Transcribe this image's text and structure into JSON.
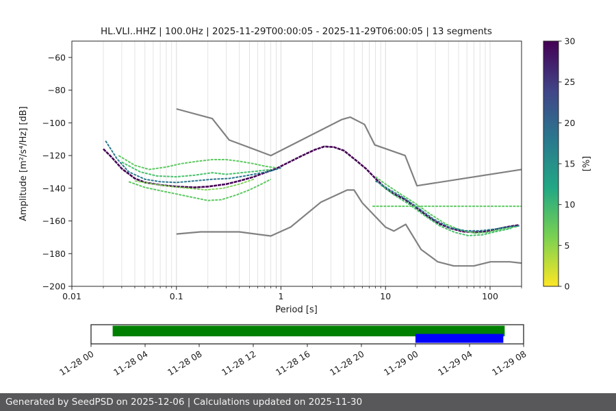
{
  "footer": {
    "text": "Generated by SeedPSD on 2025-12-06 | Calculations updated on 2025-11-30"
  },
  "chart_data": {
    "type": "line",
    "title": "HL.VLI..HHZ | 100.0Hz | 2025-11-29T00:00:05 - 2025-11-29T06:00:05 | 13 segments",
    "xlabel": "Period [s]",
    "ylabel": "Amplitude [m²/s⁴/Hz] [dB]",
    "xscale": "log",
    "xlim": [
      0.01,
      200
    ],
    "ylim": [
      -200,
      -50
    ],
    "grid": "vertical-log",
    "xticks": [
      0.01,
      0.1,
      1,
      10,
      100
    ],
    "xtick_labels": [
      "0.01",
      "0.1",
      "1",
      "10",
      "100"
    ],
    "yticks": [
      -60,
      -80,
      -100,
      -120,
      -140,
      -160,
      -180,
      -200
    ],
    "ytick_labels": [
      "−60",
      "−80",
      "−100",
      "−120",
      "−140",
      "−160",
      "−180",
      "−200"
    ],
    "colorbar": {
      "label": "[%]",
      "min": 0,
      "max": 30,
      "ticks": [
        0,
        5,
        10,
        15,
        20,
        25,
        30
      ],
      "tick_labels": [
        "0",
        "5",
        "10",
        "15",
        "20",
        "25",
        "30"
      ],
      "colors_bottom_to_top": [
        "#fde725",
        "#7ad151",
        "#22a884",
        "#2a788e",
        "#414487",
        "#440154"
      ]
    },
    "noise_models": {
      "color": "#808080",
      "high": [
        [
          0.1,
          -91.5
        ],
        [
          0.22,
          -97.4
        ],
        [
          0.32,
          -110.5
        ],
        [
          0.8,
          -120.0
        ],
        [
          3.8,
          -98.0
        ],
        [
          4.6,
          -96.5
        ],
        [
          6.3,
          -101.0
        ],
        [
          7.9,
          -113.5
        ],
        [
          15.4,
          -120.0
        ],
        [
          20.0,
          -138.5
        ],
        [
          200.0,
          -128.5
        ]
      ],
      "low": [
        [
          0.1,
          -168.0
        ],
        [
          0.17,
          -166.7
        ],
        [
          0.4,
          -166.7
        ],
        [
          0.8,
          -169.2
        ],
        [
          1.24,
          -163.7
        ],
        [
          2.4,
          -148.6
        ],
        [
          4.3,
          -141.1
        ],
        [
          5.0,
          -141.1
        ],
        [
          6.0,
          -149.0
        ],
        [
          10.0,
          -163.8
        ],
        [
          12.0,
          -166.2
        ],
        [
          15.6,
          -162.1
        ],
        [
          21.9,
          -177.5
        ],
        [
          31.6,
          -185.0
        ],
        [
          45.0,
          -187.5
        ],
        [
          70.0,
          -187.5
        ],
        [
          101.0,
          -185.0
        ],
        [
          154.0,
          -185.0
        ],
        [
          200.0,
          -185.8
        ]
      ]
    },
    "series": [
      {
        "name": "psd-dark-main",
        "color": "#440154",
        "width": 2.6,
        "dash": "5 1",
        "points": [
          [
            0.02,
            -116
          ],
          [
            0.024,
            -121
          ],
          [
            0.03,
            -128
          ],
          [
            0.04,
            -134
          ],
          [
            0.05,
            -136.5
          ],
          [
            0.07,
            -138
          ],
          [
            0.1,
            -139
          ],
          [
            0.15,
            -139.5
          ],
          [
            0.2,
            -139
          ],
          [
            0.3,
            -137.5
          ],
          [
            0.4,
            -135.5
          ],
          [
            0.55,
            -133
          ],
          [
            0.7,
            -130.5
          ],
          [
            0.9,
            -128
          ],
          [
            1.2,
            -124
          ],
          [
            1.6,
            -120
          ],
          [
            2.1,
            -116.5
          ],
          [
            2.6,
            -114.5
          ],
          [
            3.2,
            -114.8
          ],
          [
            4,
            -117
          ],
          [
            5,
            -122
          ],
          [
            6.5,
            -128
          ],
          [
            8,
            -134
          ],
          [
            10,
            -140
          ],
          [
            12,
            -143.5
          ],
          [
            15,
            -146.5
          ],
          [
            19,
            -151
          ],
          [
            25,
            -157
          ],
          [
            32,
            -161.5
          ],
          [
            42,
            -164.5
          ],
          [
            55,
            -166.5
          ],
          [
            70,
            -167
          ],
          [
            90,
            -166.5
          ],
          [
            115,
            -165
          ],
          [
            150,
            -163.5
          ],
          [
            190,
            -162.5
          ]
        ]
      },
      {
        "name": "psd-strand-teal-1",
        "color": "#2a788e",
        "width": 2,
        "dash": "4 1.4",
        "points": [
          [
            0.021,
            -111
          ],
          [
            0.027,
            -122
          ],
          [
            0.035,
            -130
          ],
          [
            0.05,
            -134.5
          ],
          [
            0.07,
            -136
          ],
          [
            0.1,
            -136.5
          ],
          [
            0.15,
            -135.5
          ],
          [
            0.22,
            -134.5
          ],
          [
            0.32,
            -134
          ],
          [
            0.45,
            -132.5
          ],
          [
            0.6,
            -131
          ],
          [
            0.8,
            -129.5
          ],
          [
            1.0,
            -127.5
          ]
        ]
      },
      {
        "name": "psd-strand-green-upper",
        "color": "#5ec962",
        "width": 2,
        "dash": "4 1.4",
        "points": [
          [
            0.028,
            -120
          ],
          [
            0.04,
            -126
          ],
          [
            0.055,
            -128.5
          ],
          [
            0.08,
            -127
          ],
          [
            0.11,
            -125
          ],
          [
            0.16,
            -123.5
          ],
          [
            0.22,
            -122.5
          ],
          [
            0.3,
            -122.5
          ],
          [
            0.4,
            -123.5
          ],
          [
            0.55,
            -125
          ],
          [
            0.7,
            -126.5
          ],
          [
            0.9,
            -127.5
          ]
        ]
      },
      {
        "name": "psd-strand-green-mid",
        "color": "#4ac16d",
        "width": 2,
        "dash": "4 1.4",
        "points": [
          [
            0.03,
            -124
          ],
          [
            0.045,
            -130
          ],
          [
            0.065,
            -132.5
          ],
          [
            0.1,
            -133
          ],
          [
            0.15,
            -132
          ],
          [
            0.22,
            -130.5
          ],
          [
            0.3,
            -131.5
          ],
          [
            0.42,
            -130.5
          ],
          [
            0.6,
            -129.5
          ],
          [
            0.8,
            -128.5
          ]
        ]
      },
      {
        "name": "psd-strand-green-low",
        "color": "#5ec962",
        "width": 2,
        "dash": "4 1.4",
        "points": [
          [
            0.035,
            -136
          ],
          [
            0.05,
            -139.5
          ],
          [
            0.07,
            -141.5
          ],
          [
            0.1,
            -143.5
          ],
          [
            0.14,
            -145.5
          ],
          [
            0.2,
            -147.5
          ],
          [
            0.27,
            -147
          ],
          [
            0.38,
            -144
          ],
          [
            0.5,
            -141
          ],
          [
            0.65,
            -137.5
          ],
          [
            0.8,
            -134.5
          ]
        ]
      },
      {
        "name": "psd-strand-green-low2",
        "color": "#7ad151",
        "width": 1.8,
        "dash": "4 1.4",
        "points": [
          [
            0.04,
            -135.5
          ],
          [
            0.06,
            -137.5
          ],
          [
            0.09,
            -139
          ],
          [
            0.13,
            -140
          ],
          [
            0.19,
            -141
          ],
          [
            0.28,
            -140
          ],
          [
            0.4,
            -137.5
          ],
          [
            0.55,
            -134.5
          ]
        ]
      },
      {
        "name": "psd-strand-right-green",
        "color": "#5ec962",
        "width": 2,
        "dash": "4 1.4",
        "points": [
          [
            8,
            -133
          ],
          [
            10,
            -137.5
          ],
          [
            13.5,
            -143
          ],
          [
            19,
            -149
          ],
          [
            27,
            -156
          ],
          [
            38,
            -162
          ],
          [
            52,
            -165.5
          ],
          [
            72,
            -167.5
          ],
          [
            95,
            -167
          ],
          [
            130,
            -165
          ],
          [
            180,
            -163.5
          ]
        ]
      },
      {
        "name": "psd-strand-right-green-low",
        "color": "#4ac16d",
        "width": 2,
        "dash": "4 1.4",
        "points": [
          [
            9,
            -138
          ],
          [
            12,
            -144
          ],
          [
            17,
            -150
          ],
          [
            24,
            -157
          ],
          [
            33,
            -163
          ],
          [
            46,
            -167
          ],
          [
            62,
            -169
          ],
          [
            85,
            -168.5
          ],
          [
            115,
            -166.5
          ],
          [
            160,
            -164.5
          ]
        ]
      },
      {
        "name": "psd-strand-right-teal",
        "color": "#2a788e",
        "width": 2,
        "dash": "4 1.4",
        "points": [
          [
            8,
            -135.5
          ],
          [
            11,
            -141
          ],
          [
            15,
            -146
          ],
          [
            21,
            -152.5
          ],
          [
            29,
            -159
          ],
          [
            41,
            -164
          ],
          [
            58,
            -166
          ],
          [
            80,
            -166
          ],
          [
            110,
            -165
          ],
          [
            155,
            -163.5
          ],
          [
            190,
            -163
          ]
        ]
      },
      {
        "name": "psd-flat-green",
        "color": "#5ec962",
        "width": 2,
        "dash": "4 1.4",
        "points": [
          [
            7.5,
            -151
          ],
          [
            200,
            -151
          ]
        ]
      }
    ],
    "timeline": {
      "hours_span": 32,
      "tick_hours": [
        0,
        4,
        8,
        12,
        16,
        20,
        24,
        28,
        32
      ],
      "tick_labels": [
        "11-28 00",
        "11-28 04",
        "11-28 08",
        "11-28 12",
        "11-28 16",
        "11-28 20",
        "11-29 00",
        "11-29 04",
        "11-29 08"
      ],
      "bars": [
        {
          "name": "coverage",
          "color": "#008000",
          "start_h": 1.6,
          "end_h": 30.6,
          "lane": "top"
        },
        {
          "name": "selection",
          "color": "#0000ff",
          "start_h": 24.0,
          "end_h": 30.5,
          "lane": "bottom"
        }
      ]
    }
  }
}
